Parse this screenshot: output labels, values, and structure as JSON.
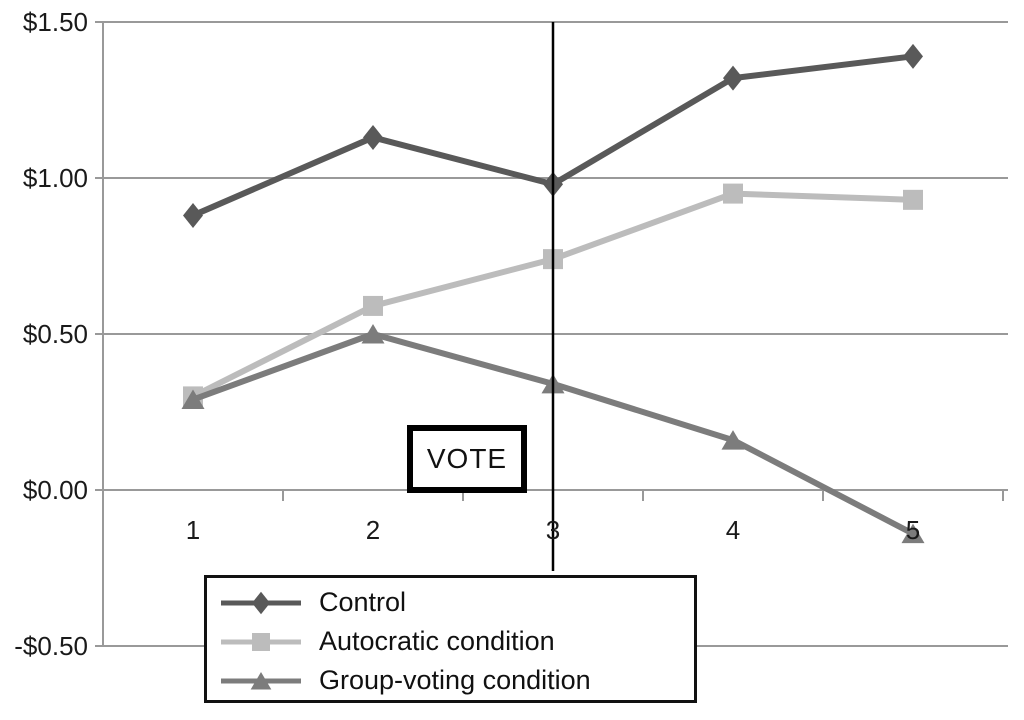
{
  "chart_data": {
    "type": "line",
    "title": "",
    "xlabel": "",
    "ylabel": "",
    "x": [
      1,
      2,
      3,
      4,
      5
    ],
    "x_tick_labels": [
      "1",
      "2",
      "3",
      "4",
      "5"
    ],
    "y_ticks": [
      1.5,
      1.0,
      0.5,
      0.0,
      -0.5
    ],
    "y_tick_labels": [
      "$1.50",
      "$1.00",
      "$0.50",
      "$0.00",
      "-$0.50"
    ],
    "ylim": [
      -0.5,
      1.5
    ],
    "grid": "horizontal",
    "legend_position": "bottom-left",
    "series": [
      {
        "name": "Control",
        "marker": "diamond",
        "color": "#595959",
        "values": [
          0.88,
          1.13,
          0.98,
          1.32,
          1.39
        ]
      },
      {
        "name": "Autocratic condition",
        "marker": "square",
        "color": "#BCBCBC",
        "values": [
          0.3,
          0.59,
          0.74,
          0.95,
          0.93
        ]
      },
      {
        "name": "Group-voting condition",
        "marker": "triangle",
        "color": "#7C7C7C",
        "values": [
          0.29,
          0.5,
          0.34,
          0.16,
          -0.14
        ]
      }
    ],
    "annotation": {
      "label": "VOTE",
      "x_position": 2.5
    },
    "colors": {
      "axis": "#999999",
      "tick_text": "#1a1a1a",
      "annotation_line": "#000000"
    }
  }
}
